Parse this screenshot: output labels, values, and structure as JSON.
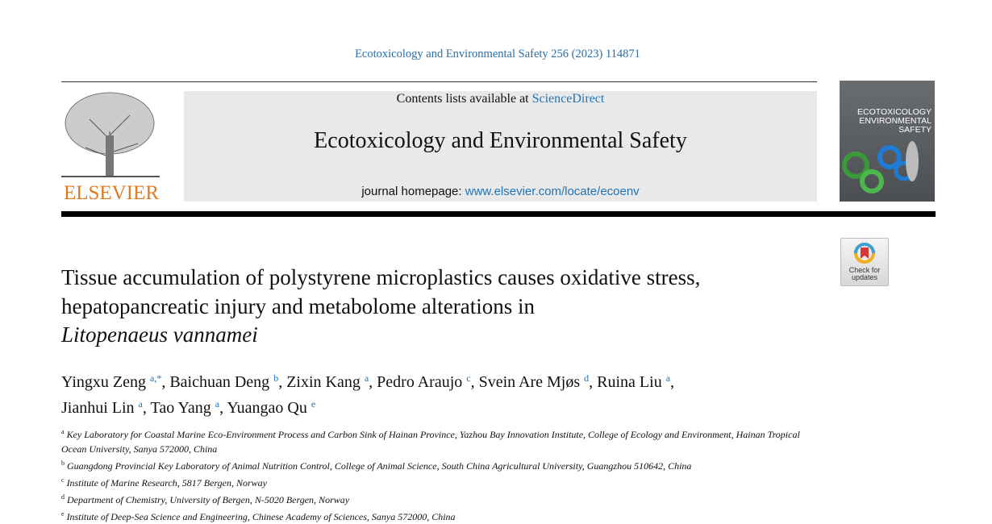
{
  "citation": "Ecotoxicology and Environmental Safety 256 (2023) 114871",
  "publisher_logo": "ELSEVIER",
  "header": {
    "contents_prefix": "Contents lists available at ",
    "contents_link": "ScienceDirect",
    "journal_name": "Ecotoxicology and Environmental Safety",
    "homepage_prefix": "journal homepage: ",
    "homepage_link": "www.elsevier.com/locate/ecoenv"
  },
  "cover": {
    "line1": "ECOTOXICOLOGY",
    "line2": "ENVIRONMENTAL",
    "line3": "SAFETY"
  },
  "updates_badge": {
    "line1": "Check for",
    "line2": "updates"
  },
  "title": {
    "line1": "Tissue accumulation of polystyrene microplastics causes oxidative stress,",
    "line2": "hepatopancreatic injury and metabolome alterations in",
    "line3_italic": "Litopenaeus vannamei"
  },
  "authors": [
    {
      "name": "Yingxu Zeng",
      "sup": "a,*",
      "sep": ", "
    },
    {
      "name": "Baichuan Deng",
      "sup": "b",
      "sep": ", "
    },
    {
      "name": "Zixin Kang",
      "sup": "a",
      "sep": ", "
    },
    {
      "name": "Pedro Araujo",
      "sup": "c",
      "sep": ", "
    },
    {
      "name": "Svein Are Mjøs",
      "sup": "d",
      "sep": ", "
    },
    {
      "name": "Ruina Liu",
      "sup": "a",
      "sep": ","
    },
    {
      "name": "Jianhui Lin",
      "sup": "a",
      "sep": ", "
    },
    {
      "name": "Tao Yang",
      "sup": "a",
      "sep": ", "
    },
    {
      "name": "Yuangao Qu",
      "sup": "e",
      "sep": ""
    }
  ],
  "affiliations": [
    {
      "key": "a",
      "text": "Key Laboratory for Coastal Marine Eco-Environment Process and Carbon Sink of Hainan Province, Yazhou Bay Innovation Institute, College of Ecology and Environment, Hainan Tropical Ocean University, Sanya 572000, China"
    },
    {
      "key": "b",
      "text": "Guangdong Provincial Key Laboratory of Animal Nutrition Control, College of Animal Science, South China Agricultural University, Guangzhou 510642, China"
    },
    {
      "key": "c",
      "text": "Institute of Marine Research, 5817 Bergen, Norway"
    },
    {
      "key": "d",
      "text": "Department of Chemistry, University of Bergen, N-5020 Bergen, Norway"
    },
    {
      "key": "e",
      "text": "Institute of Deep-Sea Science and Engineering, Chinese Academy of Sciences, Sanya 572000, China"
    }
  ]
}
